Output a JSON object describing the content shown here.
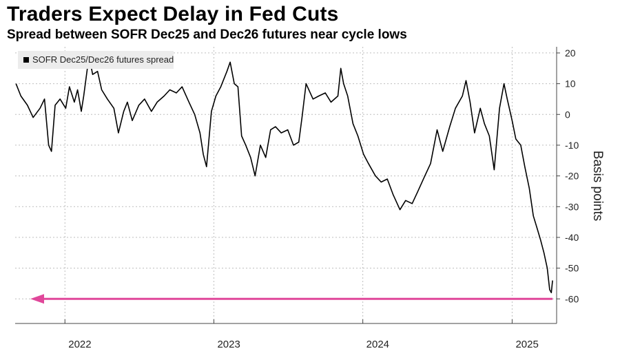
{
  "header": {
    "title": "Traders Expect Delay in Fed Cuts",
    "subtitle": "Spread between SOFR Dec25 and Dec26 futures near cycle lows"
  },
  "colors": {
    "series": "#000000",
    "arrow": "#e0479a",
    "grid": "#bdbdbd",
    "background": "#ffffff"
  },
  "chart_data": {
    "type": "line",
    "title": "Traders Expect Delay in Fed Cuts",
    "subtitle": "Spread between SOFR Dec25 and Dec26 futures near cycle lows",
    "xlabel": "",
    "ylabel": "Basis points",
    "ylim": [
      -68,
      22
    ],
    "xlim": [
      "2021-09-01",
      "2025-04-20"
    ],
    "y_ticks": [
      20,
      10,
      0,
      -10,
      -20,
      -30,
      -40,
      -50,
      -60
    ],
    "x_ticks": [
      {
        "date": "2022-01-01",
        "label": "2022"
      },
      {
        "date": "2023-01-01",
        "label": "2023"
      },
      {
        "date": "2024-01-01",
        "label": "2024"
      },
      {
        "date": "2025-01-01",
        "label": "2025"
      }
    ],
    "grid": true,
    "legend": {
      "position": "top-left"
    },
    "series": [
      {
        "name": "SOFR Dec25/Dec26 futures spread",
        "points": [
          [
            "2021-09-03",
            10
          ],
          [
            "2021-09-15",
            6
          ],
          [
            "2021-10-01",
            3
          ],
          [
            "2021-10-15",
            -1
          ],
          [
            "2021-11-01",
            2
          ],
          [
            "2021-11-12",
            5
          ],
          [
            "2021-11-22",
            -10
          ],
          [
            "2021-11-29",
            -12
          ],
          [
            "2021-12-08",
            3
          ],
          [
            "2021-12-20",
            5
          ],
          [
            "2022-01-03",
            2
          ],
          [
            "2022-01-12",
            9
          ],
          [
            "2022-01-24",
            4
          ],
          [
            "2022-02-01",
            8
          ],
          [
            "2022-02-10",
            1
          ],
          [
            "2022-02-16",
            6
          ],
          [
            "2022-03-01",
            19
          ],
          [
            "2022-03-10",
            13
          ],
          [
            "2022-03-22",
            14
          ],
          [
            "2022-04-01",
            8
          ],
          [
            "2022-04-15",
            5
          ],
          [
            "2022-05-01",
            2
          ],
          [
            "2022-05-12",
            -6
          ],
          [
            "2022-05-25",
            1
          ],
          [
            "2022-06-03",
            4
          ],
          [
            "2022-06-15",
            -2
          ],
          [
            "2022-07-01",
            3
          ],
          [
            "2022-07-15",
            5
          ],
          [
            "2022-08-01",
            1
          ],
          [
            "2022-08-15",
            4
          ],
          [
            "2022-09-01",
            6
          ],
          [
            "2022-09-15",
            8
          ],
          [
            "2022-10-01",
            7
          ],
          [
            "2022-10-15",
            9
          ],
          [
            "2022-11-01",
            4
          ],
          [
            "2022-11-15",
            0
          ],
          [
            "2022-11-28",
            -6
          ],
          [
            "2022-12-06",
            -13
          ],
          [
            "2022-12-14",
            -17
          ],
          [
            "2022-12-26",
            1
          ],
          [
            "2023-01-06",
            6
          ],
          [
            "2023-01-18",
            9
          ],
          [
            "2023-02-02",
            14
          ],
          [
            "2023-02-10",
            17
          ],
          [
            "2023-02-20",
            10
          ],
          [
            "2023-03-01",
            9
          ],
          [
            "2023-03-10",
            -7
          ],
          [
            "2023-03-20",
            -10
          ],
          [
            "2023-04-01",
            -14
          ],
          [
            "2023-04-12",
            -20
          ],
          [
            "2023-04-25",
            -10
          ],
          [
            "2023-05-08",
            -14
          ],
          [
            "2023-05-20",
            -5
          ],
          [
            "2023-06-01",
            -4
          ],
          [
            "2023-06-15",
            -6
          ],
          [
            "2023-07-01",
            -5
          ],
          [
            "2023-07-15",
            -10
          ],
          [
            "2023-07-28",
            -9
          ],
          [
            "2023-08-05",
            -1
          ],
          [
            "2023-08-15",
            10
          ],
          [
            "2023-09-01",
            5
          ],
          [
            "2023-09-15",
            6
          ],
          [
            "2023-10-01",
            7
          ],
          [
            "2023-10-15",
            4
          ],
          [
            "2023-11-01",
            6
          ],
          [
            "2023-11-08",
            15
          ],
          [
            "2023-11-15",
            10
          ],
          [
            "2023-11-25",
            6
          ],
          [
            "2023-12-08",
            -3
          ],
          [
            "2023-12-20",
            -7
          ],
          [
            "2024-01-03",
            -13
          ],
          [
            "2024-01-15",
            -16
          ],
          [
            "2024-02-01",
            -20
          ],
          [
            "2024-02-15",
            -22
          ],
          [
            "2024-03-01",
            -21
          ],
          [
            "2024-03-15",
            -26
          ],
          [
            "2024-04-01",
            -31
          ],
          [
            "2024-04-15",
            -28
          ],
          [
            "2024-05-01",
            -29
          ],
          [
            "2024-05-15",
            -25
          ],
          [
            "2024-06-01",
            -20
          ],
          [
            "2024-06-15",
            -16
          ],
          [
            "2024-07-01",
            -5
          ],
          [
            "2024-07-15",
            -12
          ],
          [
            "2024-08-01",
            -4
          ],
          [
            "2024-08-15",
            2
          ],
          [
            "2024-09-01",
            6
          ],
          [
            "2024-09-10",
            11
          ],
          [
            "2024-09-20",
            4
          ],
          [
            "2024-10-01",
            -6
          ],
          [
            "2024-10-15",
            2
          ],
          [
            "2024-10-25",
            -3
          ],
          [
            "2024-11-06",
            -7
          ],
          [
            "2024-11-18",
            -18
          ],
          [
            "2024-12-01",
            2
          ],
          [
            "2024-12-12",
            10
          ],
          [
            "2024-12-20",
            5
          ],
          [
            "2025-01-01",
            -2
          ],
          [
            "2025-01-10",
            -8
          ],
          [
            "2025-01-22",
            -10
          ],
          [
            "2025-02-01",
            -17
          ],
          [
            "2025-02-12",
            -24
          ],
          [
            "2025-02-22",
            -33
          ],
          [
            "2025-03-03",
            -37
          ],
          [
            "2025-03-12",
            -41
          ],
          [
            "2025-03-20",
            -45
          ],
          [
            "2025-03-28",
            -50
          ],
          [
            "2025-04-03",
            -57
          ],
          [
            "2025-04-07",
            -58
          ],
          [
            "2025-04-10",
            -54
          ]
        ]
      }
    ],
    "annotation": {
      "type": "arrow",
      "direction": "left",
      "value": -60
    }
  }
}
